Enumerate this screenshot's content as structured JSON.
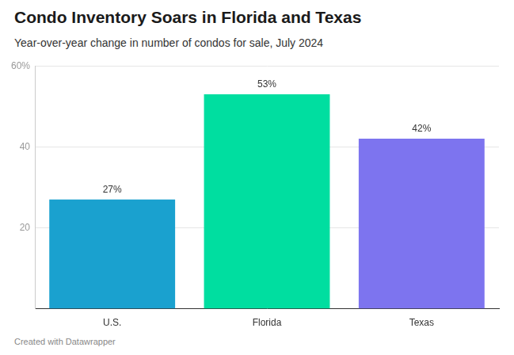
{
  "chart_data": {
    "type": "bar",
    "title": "Condo Inventory Soars in Florida and Texas",
    "subtitle": "Year-over-year change in number of condos for sale, July 2024",
    "footer": "Created with Datawrapper",
    "categories": [
      "U.S.",
      "Florida",
      "Texas"
    ],
    "values": [
      27,
      53,
      42
    ],
    "value_labels": [
      "27%",
      "53%",
      "42%"
    ],
    "colors": [
      "#1aa1cf",
      "#00dea0",
      "#7d74ef"
    ],
    "ylim": [
      0,
      60
    ],
    "yticks": [
      20,
      40,
      {
        "value": 60,
        "label": "60%"
      }
    ],
    "grid": true,
    "data_labels": true
  }
}
